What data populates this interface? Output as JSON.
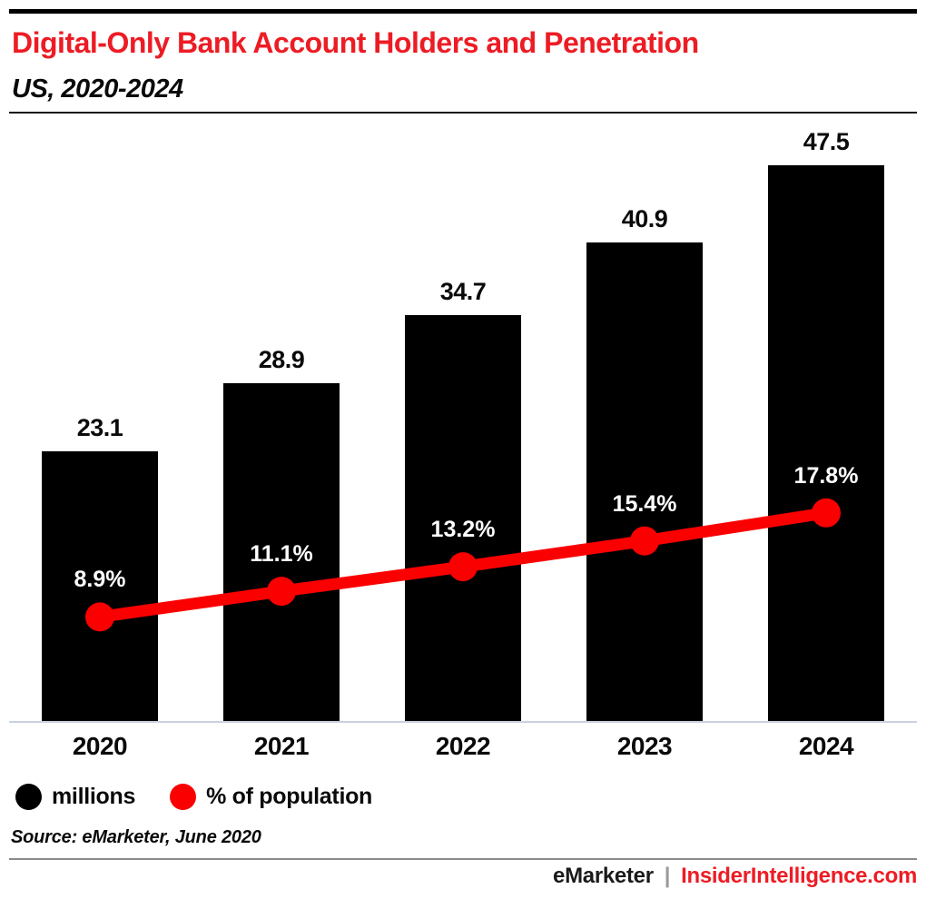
{
  "header": {
    "title": "Digital-Only Bank Account Holders and Penetration",
    "subtitle": "US, 2020-2024"
  },
  "colors": {
    "accent_red": "#ed1c24",
    "line_red": "#fa0000",
    "bar_black": "#000000",
    "axis_line": "#c9d2e0",
    "divider_gray": "#8a8a8a",
    "pct_label": "#ffffff",
    "pipe_gray": "#9b9b9b"
  },
  "legend": [
    {
      "label": "millions",
      "color": "#000000"
    },
    {
      "label": "% of population",
      "color": "#fa0000"
    }
  ],
  "source": "Source: eMarketer, June 2020",
  "footer": {
    "brand": "eMarketer",
    "separator": "|",
    "site": "InsiderIntelligence.com"
  },
  "chart_data": {
    "type": "bar",
    "subtype": "bar+line combo",
    "title": "Digital-Only Bank Account Holders and Penetration",
    "subtitle": "US, 2020-2024",
    "categories": [
      "2020",
      "2021",
      "2022",
      "2023",
      "2024"
    ],
    "series": [
      {
        "name": "millions",
        "type": "bar",
        "color": "#000000",
        "values": [
          23.1,
          28.9,
          34.7,
          40.9,
          47.5
        ],
        "labels": [
          "23.1",
          "28.9",
          "34.7",
          "40.9",
          "47.5"
        ]
      },
      {
        "name": "% of population",
        "type": "line",
        "color": "#fa0000",
        "values": [
          8.9,
          11.1,
          13.2,
          15.4,
          17.8
        ],
        "labels": [
          "8.9%",
          "11.1%",
          "13.2%",
          "15.4%",
          "17.8%"
        ]
      }
    ],
    "xlabel": "",
    "ylabel": "",
    "ylim": [
      0,
      50.8
    ],
    "grid": false,
    "legend_position": "bottom-left"
  }
}
